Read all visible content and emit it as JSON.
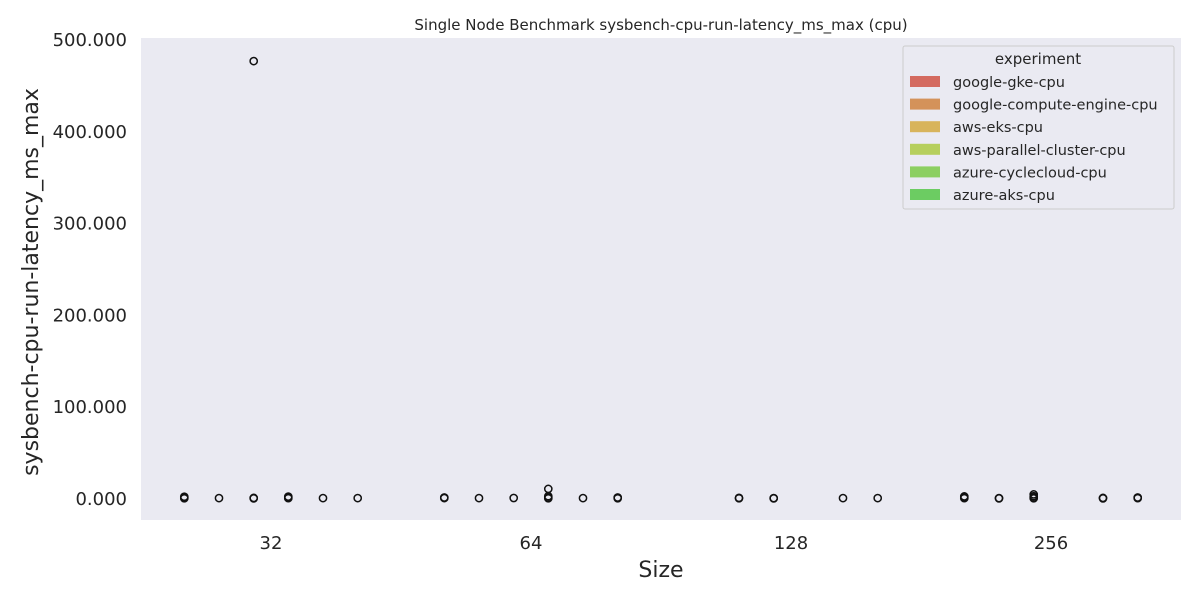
{
  "chart_data": {
    "type": "box",
    "title": "Single Node Benchmark sysbench-cpu-run-latency_ms_max (cpu)",
    "xlabel": "Size",
    "ylabel": "sysbench-cpu-run-latency_ms_max",
    "ylim": [
      -22,
      500
    ],
    "yticks": [
      "0.000",
      "100.000",
      "200.000",
      "300.000",
      "400.000",
      "500.000"
    ],
    "ytick_values": [
      0,
      100,
      200,
      300,
      400,
      500
    ],
    "categories": [
      "32",
      "64",
      "128",
      "256"
    ],
    "legend": {
      "title": "experiment",
      "placement": "top-right"
    },
    "grid": false,
    "background": "#eaeaf2",
    "series": [
      {
        "name": "google-gke-cpu",
        "color": "#d46a60",
        "outliers": [
          [
            2.5,
            1.5,
            0.8
          ],
          [
            1.6,
            1.0
          ],
          [],
          [
            2.8,
            1.8,
            0.9
          ]
        ]
      },
      {
        "name": "google-compute-engine-cpu",
        "color": "#d4925a",
        "outliers": [
          [
            1.0
          ],
          [
            1.0
          ],
          [
            1.3,
            0.8
          ],
          [
            1.0,
            0.7
          ]
        ]
      },
      {
        "name": "aws-eks-cpu",
        "color": "#d8b45c",
        "outliers": [
          [
            477,
            1.2,
            0.6
          ],
          [
            1.1
          ],
          [
            1.0,
            0.6
          ],
          [
            5.0,
            3.0,
            1.5,
            0.8
          ]
        ]
      },
      {
        "name": "aws-parallel-cluster-cpu",
        "color": "#b6cf5d",
        "outliers": [
          [
            2.6,
            1.5,
            0.9
          ],
          [
            11.0,
            3.0,
            1.5,
            0.8
          ],
          [],
          []
        ]
      },
      {
        "name": "azure-cyclecloud-cpu",
        "color": "#8ccf61",
        "outliers": [
          [
            1.0
          ],
          [
            1.0
          ],
          [
            1.0
          ],
          [
            1.2,
            0.6
          ]
        ]
      },
      {
        "name": "azure-aks-cpu",
        "color": "#6ccc62",
        "outliers": [
          [
            1.0
          ],
          [
            1.6,
            0.8
          ],
          [
            1.0
          ],
          [
            1.6,
            0.9
          ]
        ]
      }
    ]
  }
}
